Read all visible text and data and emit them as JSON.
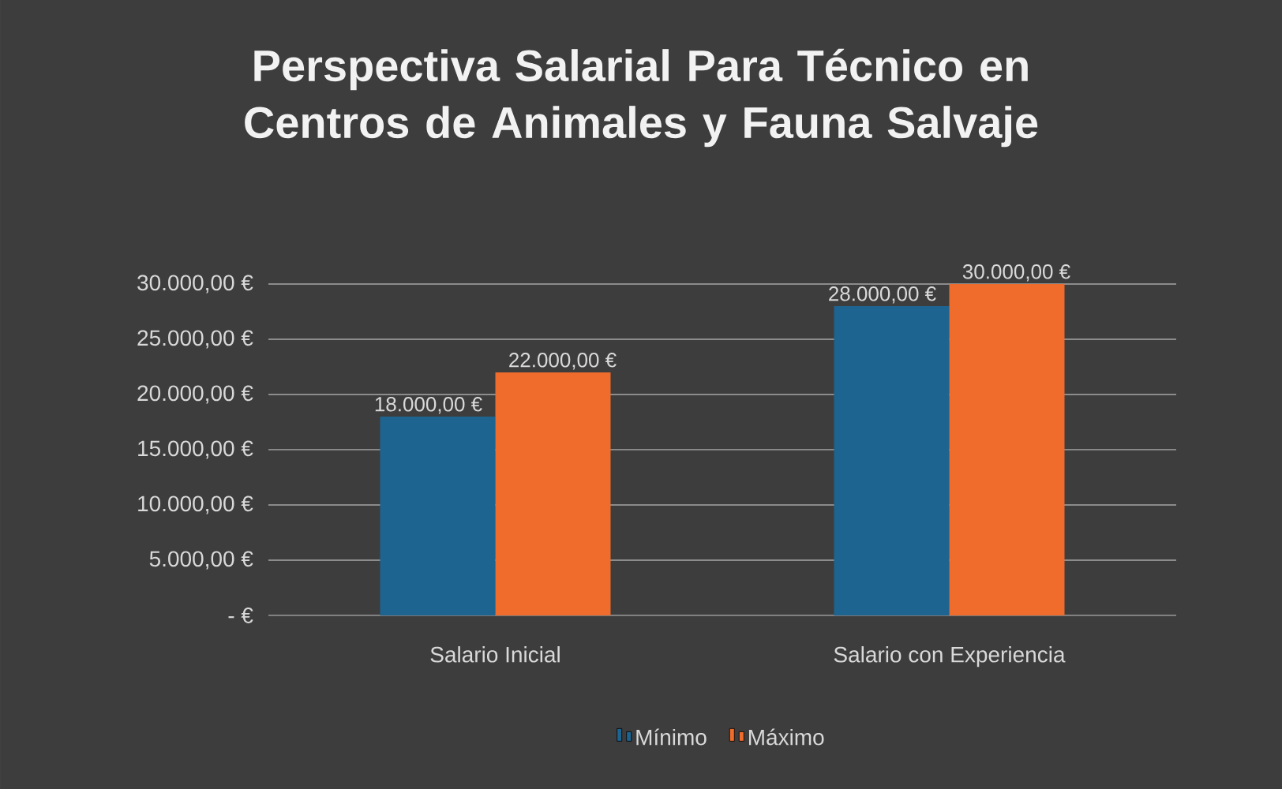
{
  "chart_data": {
    "type": "bar",
    "title": "Perspectiva Salarial Para Técnico en Centros de Animales y Fauna Salvaje",
    "categories": [
      "Salario Inicial",
      "Salario con Experiencia"
    ],
    "series": [
      {
        "name": "Mínimo",
        "color": "#1e6491",
        "values": [
          18000,
          28000
        ],
        "value_labels": [
          "18.000,00 €",
          "28.000,00 €"
        ]
      },
      {
        "name": "Máximo",
        "color": "#ef6c2c",
        "values": [
          22000,
          30000
        ],
        "value_labels": [
          "22.000,00 €",
          "30.000,00 €"
        ]
      }
    ],
    "ylim": [
      0,
      30000
    ],
    "yticks": [
      {
        "value": 0,
        "label": "- €"
      },
      {
        "value": 5000,
        "label": "5.000,00 €"
      },
      {
        "value": 10000,
        "label": "10.000,00 €"
      },
      {
        "value": 15000,
        "label": "15.000,00 €"
      },
      {
        "value": 20000,
        "label": "20.000,00 €"
      },
      {
        "value": 25000,
        "label": "25.000,00 €"
      },
      {
        "value": 30000,
        "label": "30.000,00 €"
      }
    ],
    "grid": "y",
    "legend": "bottom"
  }
}
